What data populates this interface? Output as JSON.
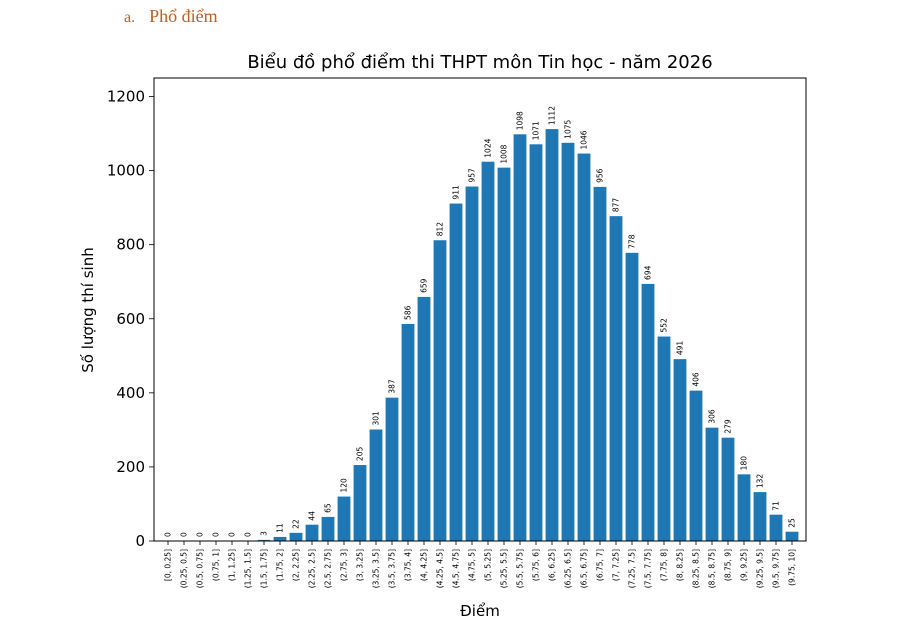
{
  "document": {
    "section_marker": "a.",
    "section_title": "Phổ điểm"
  },
  "chart_data": {
    "type": "bar",
    "title": "Biểu đồ phổ điểm thi THPT môn Tin học - năm 2026",
    "xlabel": "Điểm",
    "ylabel": "Số lượng thí sinh",
    "ylim": [
      0,
      1250
    ],
    "yticks": [
      0,
      200,
      400,
      600,
      800,
      1000,
      1200
    ],
    "grid": false,
    "bar_color": "#1f77b4",
    "categories": [
      "[0, 0.25]",
      "(0.25, 0.5]",
      "(0.5, 0.75]",
      "(0.75, 1]",
      "(1, 1.25]",
      "(1.25, 1.5]",
      "(1.5, 1.75]",
      "(1.75, 2]",
      "(2, 2.25]",
      "(2.25, 2.5]",
      "(2.5, 2.75]",
      "(2.75, 3]",
      "(3, 3.25]",
      "(3.25, 3.5]",
      "(3.5, 3.75]",
      "(3.75, 4]",
      "(4, 4.25]",
      "(4.25, 4.5]",
      "(4.5, 4.75]",
      "(4.75, 5]",
      "(5, 5.25]",
      "(5.25, 5.5]",
      "(5.5, 5.75]",
      "(5.75, 6]",
      "(6, 6.25]",
      "(6.25, 6.5]",
      "(6.5, 6.75]",
      "(6.75, 7]",
      "(7, 7.25]",
      "(7.25, 7.5]",
      "(7.5, 7.75]",
      "(7.75, 8]",
      "(8, 8.25]",
      "(8.25, 8.5]",
      "(8.5, 8.75]",
      "(8.75, 9]",
      "(9, 9.25]",
      "(9.25, 9.5]",
      "(9.5, 9.75]",
      "(9.75, 10]"
    ],
    "values": [
      0,
      0,
      0,
      0,
      0,
      0,
      3,
      11,
      22,
      44,
      65,
      120,
      205,
      301,
      387,
      586,
      659,
      812,
      911,
      957,
      1024,
      1008,
      1098,
      1071,
      1112,
      1075,
      1046,
      956,
      877,
      778,
      694,
      552,
      491,
      406,
      306,
      279,
      180,
      132,
      71,
      25
    ]
  }
}
